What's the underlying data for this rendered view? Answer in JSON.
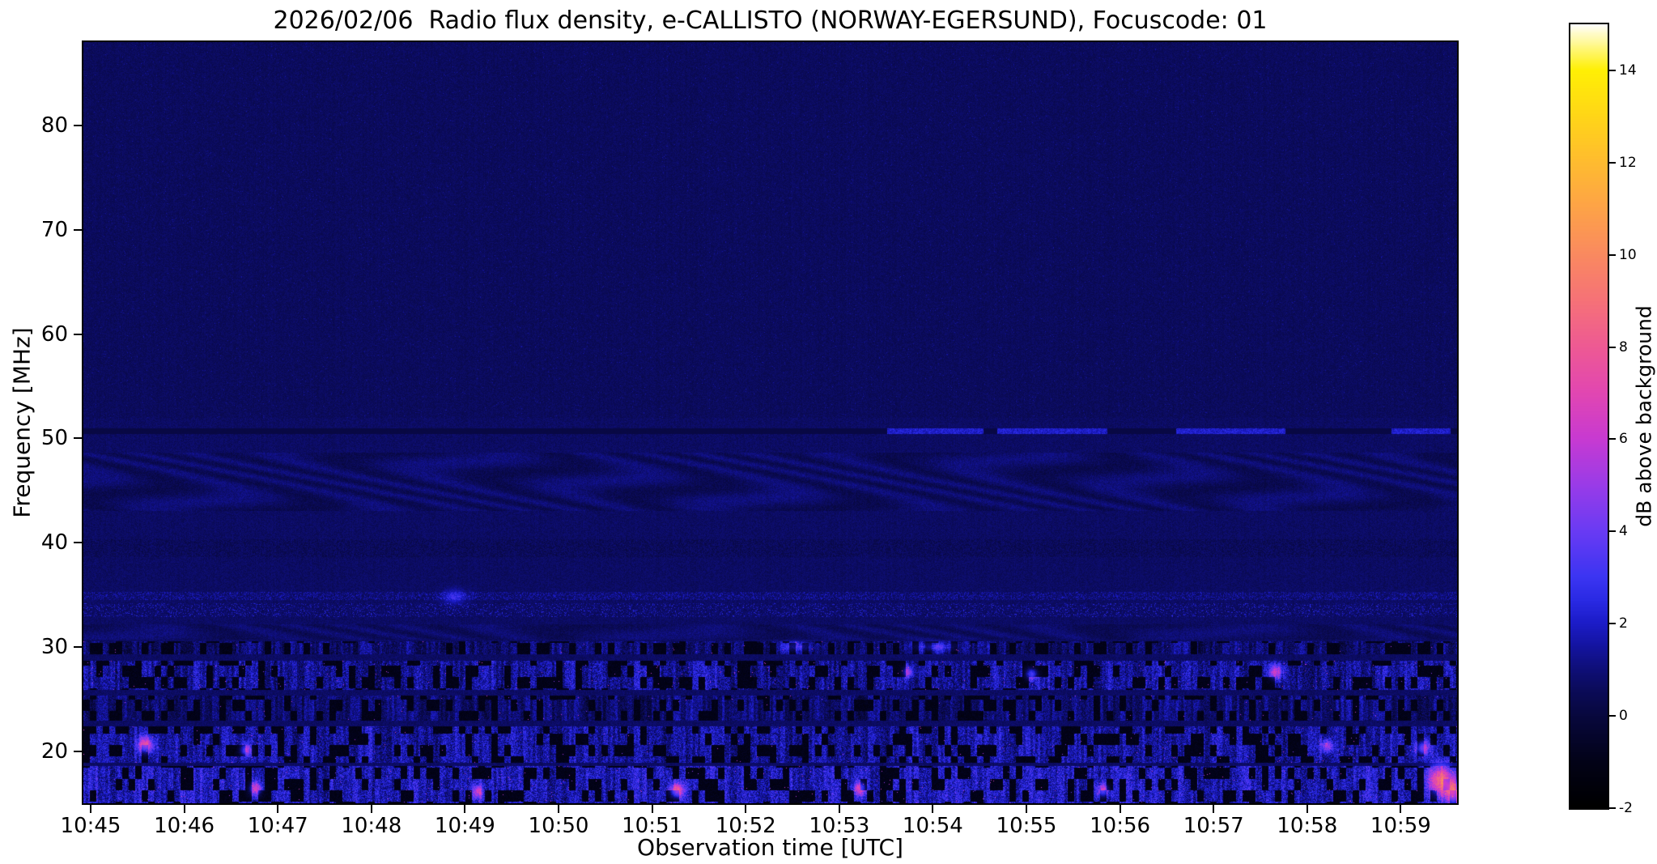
{
  "chart_data": {
    "type": "heatmap",
    "title": "2026/02/06  Radio flux density, e-CALLISTO (NORWAY-EGERSUND), Focuscode: 01",
    "xlabel": "Observation time [UTC]",
    "ylabel": "Frequency [MHz]",
    "x_ticks": [
      "10:45",
      "10:46",
      "10:47",
      "10:48",
      "10:49",
      "10:50",
      "10:51",
      "10:52",
      "10:53",
      "10:54",
      "10:55",
      "10:56",
      "10:57",
      "10:58",
      "10:59"
    ],
    "x_range_utc": [
      "10:45",
      "11:00"
    ],
    "y_ticks": [
      80,
      70,
      60,
      50,
      40,
      30,
      20
    ],
    "y_range_mhz": [
      15,
      88
    ],
    "grid": false,
    "legend": "none",
    "colorbar": {
      "label": "dB above background",
      "ticks": [
        -2,
        0,
        2,
        4,
        6,
        8,
        10,
        12,
        14
      ],
      "range": [
        -2,
        15
      ],
      "colormap_stops": [
        {
          "v": -2.0,
          "c": "#000000"
        },
        {
          "v": -1.0,
          "c": "#030318"
        },
        {
          "v": 0.0,
          "c": "#08083e"
        },
        {
          "v": 0.5,
          "c": "#0b0b57"
        },
        {
          "v": 1.0,
          "c": "#0f0f78"
        },
        {
          "v": 1.5,
          "c": "#1414a0"
        },
        {
          "v": 2.0,
          "c": "#1c1cc8"
        },
        {
          "v": 2.5,
          "c": "#2a2ae4"
        },
        {
          "v": 3.0,
          "c": "#3c35f2"
        },
        {
          "v": 4.0,
          "c": "#6a3bf4"
        },
        {
          "v": 5.0,
          "c": "#9a3ce8"
        },
        {
          "v": 6.0,
          "c": "#c83ad2"
        },
        {
          "v": 7.0,
          "c": "#e247b2"
        },
        {
          "v": 8.0,
          "c": "#ee5a94"
        },
        {
          "v": 9.0,
          "c": "#f67278"
        },
        {
          "v": 10.0,
          "c": "#fa8a60"
        },
        {
          "v": 11.0,
          "c": "#fea348"
        },
        {
          "v": 12.0,
          "c": "#ffbc30"
        },
        {
          "v": 13.0,
          "c": "#ffd618"
        },
        {
          "v": 14.0,
          "c": "#fff005"
        },
        {
          "v": 15.0,
          "c": "#ffffff"
        }
      ]
    },
    "background_noise_db": [
      0.3,
      1.0
    ],
    "features": [
      {
        "style": "line",
        "f_lo": 50.45,
        "f_hi": 50.95,
        "level": 0.15,
        "bright_level": 2.1,
        "bright_segments": [
          [
            0.585,
            0.655
          ],
          [
            0.665,
            0.745
          ],
          [
            0.795,
            0.875
          ],
          [
            0.952,
            0.995
          ]
        ],
        "note": "narrow horizontal interference line at 50.7 MHz, dark on left, brighter after 10:54"
      },
      {
        "style": "wavy",
        "f_lo": 43.0,
        "f_hi": 48.6,
        "amp": 0.36,
        "note": "faint wavy ionospheric/RFI ripple band"
      },
      {
        "style": "speckle",
        "f_lo": 38.6,
        "f_hi": 40.3,
        "density": 0.3,
        "amp": -0.55,
        "note": "dotted darker band near 39-40 MHz"
      },
      {
        "style": "speckle",
        "f_lo": 34.5,
        "f_hi": 35.3,
        "density": 0.45,
        "amp": 0.9,
        "note": "speckled line near 35 MHz"
      },
      {
        "style": "speckle",
        "f_lo": 32.9,
        "f_hi": 34.2,
        "density": 0.18,
        "amp": 1.3,
        "note": "sparse bright speckles 33-34 MHz"
      },
      {
        "style": "wavy",
        "f_lo": 30.7,
        "f_hi": 32.2,
        "amp": 0.3,
        "note": "faint ripple near 31 MHz"
      },
      {
        "style": "bright",
        "f_lo": 29.3,
        "f_hi": 30.5,
        "level": 0.5,
        "contrast": 1.7,
        "gap": 0.3,
        "magenta": 0.001,
        "note": "dark/bright dashed line at 30 MHz"
      },
      {
        "style": "bright",
        "f_lo": 25.9,
        "f_hi": 28.7,
        "level": 1.05,
        "contrast": 2.3,
        "gap": 0.34,
        "magenta": 0.004,
        "note": "strong broadband RFI band 26-28.5 MHz with black dropouts and magenta peaks"
      },
      {
        "style": "bright",
        "f_lo": 22.9,
        "f_hi": 25.3,
        "level": 0.55,
        "contrast": 1.6,
        "gap": 0.3,
        "magenta": 0.0012,
        "note": "moderate noisy band 23-25 MHz"
      },
      {
        "style": "bright",
        "f_lo": 18.9,
        "f_hi": 22.4,
        "level": 1.15,
        "contrast": 2.3,
        "gap": 0.32,
        "magenta": 0.003,
        "note": "strong noisy band 19-22 MHz"
      },
      {
        "style": "bright",
        "f_lo": 15.0,
        "f_hi": 18.6,
        "level": 1.45,
        "contrast": 2.5,
        "gap": 0.3,
        "magenta": 0.004,
        "note": "brightest band at bottom edge 15-18.5 MHz"
      }
    ],
    "hotspots": [
      {
        "t": 0.045,
        "f": 20.6,
        "v": 6.0,
        "rt": 0.004,
        "rf": 0.55
      },
      {
        "t": 0.118,
        "f": 20.1,
        "v": 4.5,
        "rt": 0.003,
        "rf": 0.45
      },
      {
        "t": 0.125,
        "f": 16.4,
        "v": 5.0,
        "rt": 0.003,
        "rf": 0.5
      },
      {
        "t": 0.27,
        "f": 34.8,
        "v": 1.8,
        "rt": 0.006,
        "rf": 0.5
      },
      {
        "t": 0.287,
        "f": 16.1,
        "v": 4.5,
        "rt": 0.0028,
        "rf": 0.45
      },
      {
        "t": 0.432,
        "f": 16.2,
        "v": 6.0,
        "rt": 0.0035,
        "rf": 0.5
      },
      {
        "t": 0.52,
        "f": 30.0,
        "v": 2.2,
        "rt": 0.01,
        "rf": 0.35
      },
      {
        "t": 0.565,
        "f": 16.4,
        "v": 5.0,
        "rt": 0.003,
        "rf": 0.5
      },
      {
        "t": 0.6,
        "f": 27.6,
        "v": 4.0,
        "rt": 0.0028,
        "rf": 0.4
      },
      {
        "t": 0.62,
        "f": 30.0,
        "v": 2.4,
        "rt": 0.012,
        "rf": 0.35
      },
      {
        "t": 0.69,
        "f": 27.4,
        "v": 4.2,
        "rt": 0.003,
        "rf": 0.4
      },
      {
        "t": 0.742,
        "f": 16.2,
        "v": 4.5,
        "rt": 0.003,
        "rf": 0.45
      },
      {
        "t": 0.868,
        "f": 27.6,
        "v": 5.0,
        "rt": 0.0035,
        "rf": 0.5
      },
      {
        "t": 0.905,
        "f": 20.5,
        "v": 4.5,
        "rt": 0.003,
        "rf": 0.45
      },
      {
        "t": 0.975,
        "f": 20.3,
        "v": 5.0,
        "rt": 0.0035,
        "rf": 0.5
      },
      {
        "t": 0.988,
        "f": 17.2,
        "v": 7.0,
        "rt": 0.006,
        "rf": 1.0
      },
      {
        "t": 0.997,
        "f": 16.0,
        "v": 6.5,
        "rt": 0.004,
        "rf": 0.8
      }
    ]
  }
}
